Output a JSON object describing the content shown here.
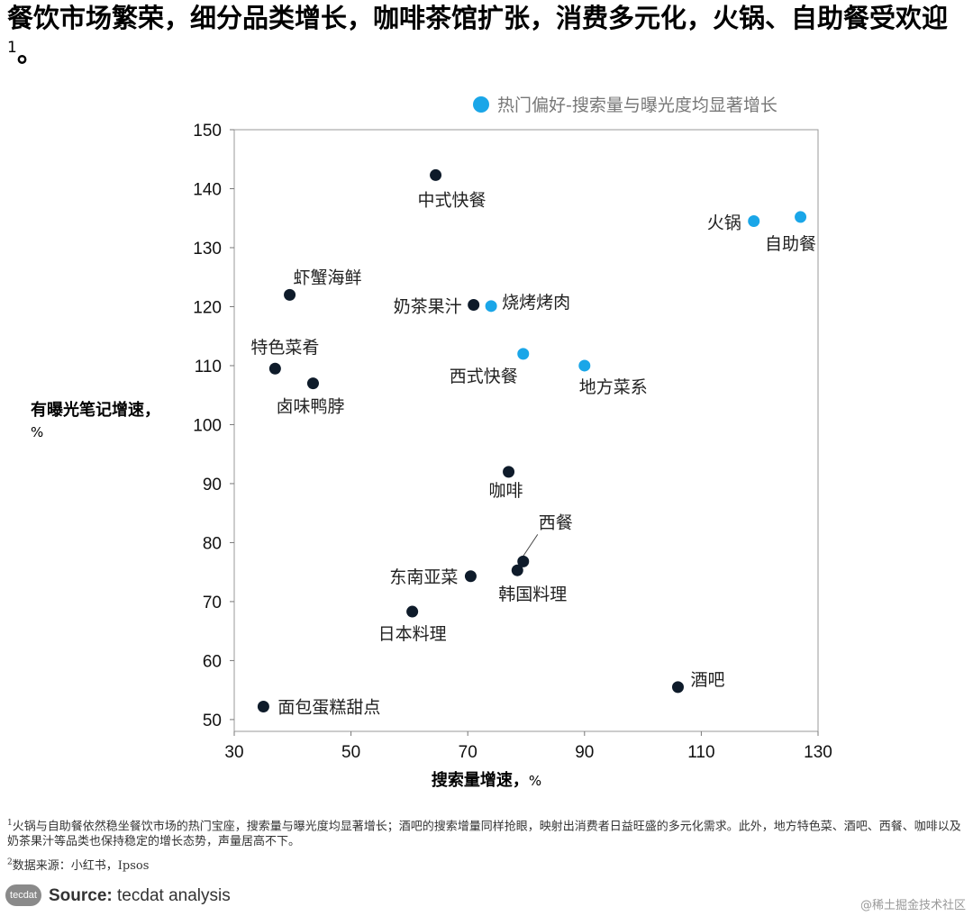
{
  "title": {
    "text": "餐饮市场繁荣，细分品类增长，咖啡茶馆扩张，消费多元化，火锅、自助餐受欢迎",
    "footnote_marker": "1",
    "end_punct": "。"
  },
  "chart_data": {
    "type": "scatter",
    "xlabel": "搜索量增速，",
    "ylabel": "有曝光笔记增速，",
    "unit": "%",
    "xlim": [
      30,
      130
    ],
    "ylim": [
      48,
      150
    ],
    "xticks": [
      30,
      50,
      70,
      90,
      110,
      130
    ],
    "yticks": [
      50,
      60,
      70,
      80,
      90,
      100,
      110,
      120,
      130,
      140,
      150
    ],
    "legend": {
      "label": "热门偏好-搜索量与曝光度均显著增长",
      "color": "#1aa6e8",
      "position": "top-right"
    },
    "colors": {
      "highlight": "#1aa6e8",
      "normal": "#0e1b2a"
    },
    "points": [
      {
        "label": "中式快餐",
        "x": 64.5,
        "y": 142.3,
        "highlight": false
      },
      {
        "label": "火锅",
        "x": 119,
        "y": 134.5,
        "highlight": true
      },
      {
        "label": "自助餐",
        "x": 127,
        "y": 135.2,
        "highlight": true
      },
      {
        "label": "虾蟹海鲜",
        "x": 39.5,
        "y": 122,
        "highlight": false
      },
      {
        "label": "奶茶果汁",
        "x": 71,
        "y": 120.3,
        "highlight": false
      },
      {
        "label": "烧烤烤肉",
        "x": 74,
        "y": 120.1,
        "highlight": true
      },
      {
        "label": "特色菜肴",
        "x": 37,
        "y": 109.5,
        "highlight": false
      },
      {
        "label": "卤味鸭脖",
        "x": 43.5,
        "y": 107,
        "highlight": false
      },
      {
        "label": "西式快餐",
        "x": 79.5,
        "y": 112,
        "highlight": true
      },
      {
        "label": "地方菜系",
        "x": 90,
        "y": 110,
        "highlight": true
      },
      {
        "label": "咖啡",
        "x": 77,
        "y": 92,
        "highlight": false
      },
      {
        "label": "西餐",
        "x": 79.5,
        "y": 76.8,
        "highlight": false
      },
      {
        "label": "韩国料理",
        "x": 78.5,
        "y": 75.3,
        "highlight": false
      },
      {
        "label": "东南亚菜",
        "x": 70.5,
        "y": 74.3,
        "highlight": false
      },
      {
        "label": "日本料理",
        "x": 60.5,
        "y": 68.3,
        "highlight": false
      },
      {
        "label": "酒吧",
        "x": 106,
        "y": 55.5,
        "highlight": false
      },
      {
        "label": "面包蛋糕甜点",
        "x": 35,
        "y": 52.2,
        "highlight": false
      }
    ]
  },
  "footnotes": {
    "note1_marker": "1",
    "note1": "火锅与自助餐依然稳坐餐饮市场的热门宝座，搜索量与曝光度均显著增长；酒吧的搜索增量同样抢眼，映射出消费者日益旺盛的多元化需求。此外，地方特色菜、酒吧、西餐、咖啡以及奶茶果汁等品类也保持稳定的增长态势，声量居高不下。",
    "note2_marker": "2",
    "note2": "数据来源：小红书，Ipsos"
  },
  "source": {
    "logo": "tecdat",
    "label": "Source:",
    "text": " tecdat analysis"
  },
  "watermark": "@稀土掘金技术社区"
}
